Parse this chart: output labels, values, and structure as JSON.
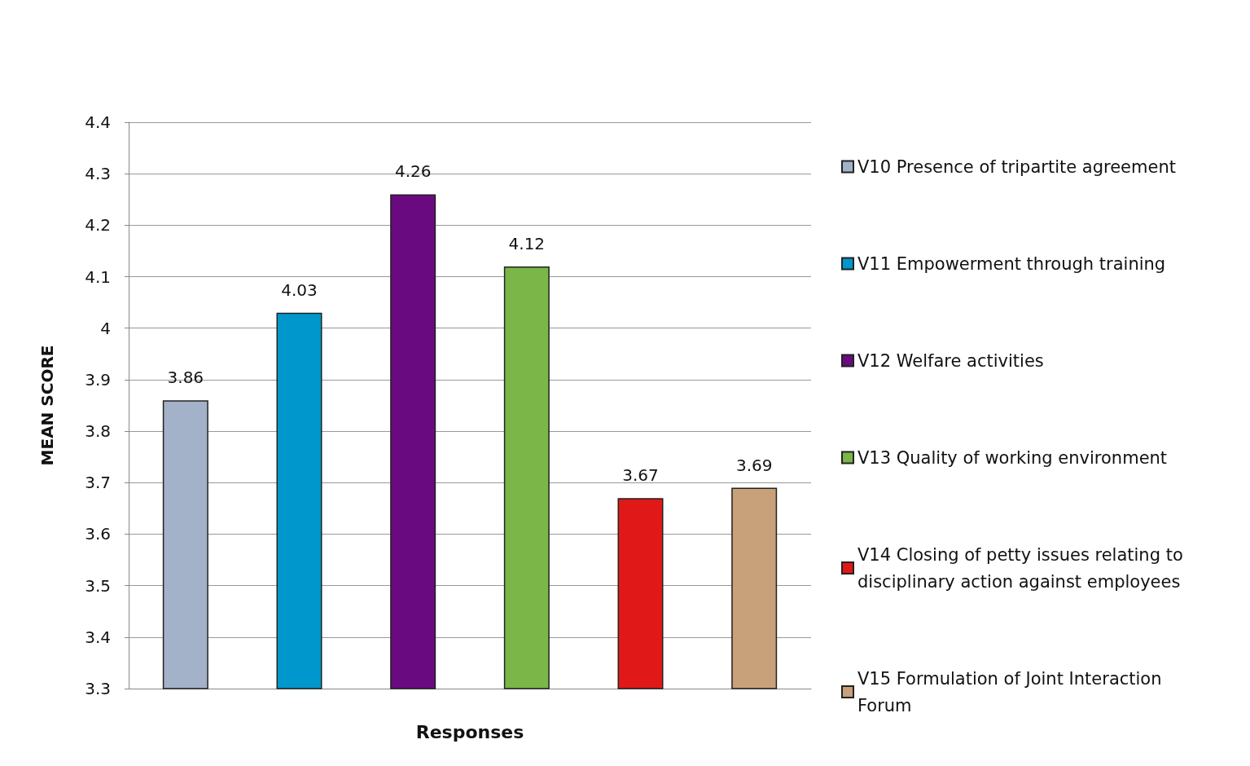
{
  "chart_data": {
    "type": "bar",
    "xlabel": "Responses",
    "ylabel": "MEAN SCORE",
    "categories": [
      null,
      null,
      null,
      null,
      null,
      null
    ],
    "series": [
      {
        "name": "V10 Presence of tripartite agreement",
        "color": "#a3b1c9",
        "values": [
          3.86,
          null,
          null,
          null,
          null,
          null
        ]
      },
      {
        "name": "V11 Empowerment through training",
        "color": "#0097cc",
        "values": [
          null,
          4.03,
          null,
          null,
          null,
          null
        ]
      },
      {
        "name": "V12 Welfare activities",
        "color": "#6a0a80",
        "values": [
          null,
          null,
          4.26,
          null,
          null,
          null
        ]
      },
      {
        "name": "V13 Quality of working environment",
        "color": "#7ab648",
        "values": [
          null,
          null,
          null,
          4.12,
          null,
          null
        ]
      },
      {
        "name": "V14 Closing of petty issues relating to disciplinary action against employees",
        "color": "#e01818",
        "values": [
          null,
          null,
          null,
          null,
          3.67,
          null
        ]
      },
      {
        "name": "V15 Formulation of Joint Interaction Forum",
        "color": "#c8a07a",
        "values": [
          null,
          null,
          null,
          null,
          null,
          3.69
        ]
      }
    ],
    "ylim": [
      3.3,
      4.4
    ],
    "yticks": [
      3.3,
      3.4,
      3.5,
      3.6,
      3.7,
      3.8,
      3.9,
      4,
      4.1,
      4.2,
      4.3,
      4.4
    ],
    "grid": "y",
    "legend": "right",
    "data_labels": true
  }
}
